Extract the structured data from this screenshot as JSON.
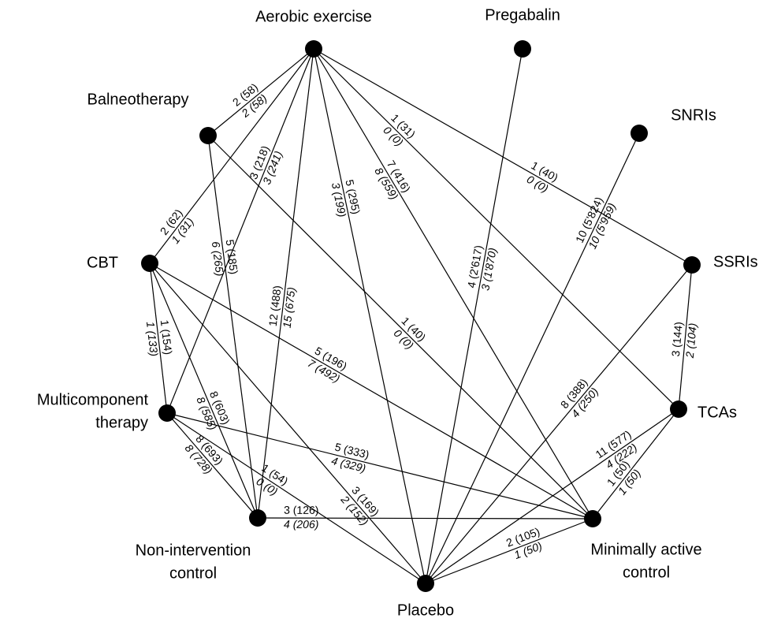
{
  "nodes": [
    {
      "label": [
        "Aerobic exercise"
      ]
    },
    {
      "label": [
        "Pregabalin"
      ]
    },
    {
      "label": [
        "Balneotherapy"
      ]
    },
    {
      "label": [
        "SNRIs"
      ]
    },
    {
      "label": [
        "CBT"
      ]
    },
    {
      "label": [
        "SSRIs"
      ]
    },
    {
      "label": [
        "Multicomponent",
        "therapy"
      ]
    },
    {
      "label": [
        "TCAs"
      ]
    },
    {
      "label": [
        "Non-intervention",
        "control"
      ]
    },
    {
      "label": [
        "Minimally active",
        "control"
      ]
    },
    {
      "label": [
        "Placebo"
      ]
    }
  ],
  "edges": [
    {
      "labels": [
        "2 (58)",
        "2 (58)"
      ]
    },
    {
      "labels": [
        "2 (62)",
        "1 (31)"
      ]
    },
    {
      "labels": [
        "3 (218)",
        "3 (241)"
      ]
    },
    {
      "labels": [
        "12 (488)",
        "15 (675)"
      ]
    },
    {
      "labels": [
        "5 (295)",
        "3 (199)"
      ]
    },
    {
      "labels": [
        "5 (185)",
        "6 (265)"
      ]
    },
    {
      "labels": [
        "1 (40)",
        "0 (0)"
      ]
    },
    {
      "labels": [
        "7 (416)",
        "8 (559)"
      ]
    },
    {
      "labels": [
        "1 (31)",
        "0 (0)"
      ]
    },
    {
      "labels": [
        "1 (40)",
        "0 (0)"
      ]
    },
    {
      "labels": [
        "4 (2'617)",
        "3 (1'870)"
      ]
    },
    {
      "labels": [
        "10 (5'824)",
        "10 (5'959)"
      ]
    },
    {
      "labels": [
        "3 (144)",
        "2 (104)"
      ]
    },
    {
      "labels": [
        "8 (388)",
        "4 (250)"
      ]
    },
    {
      "labels": [
        "1 (154)",
        "1 (133)"
      ]
    },
    {
      "labels": [
        "8 (603)",
        "8 (585)"
      ]
    },
    {
      "labels": [
        "5 (196)",
        "7 (492)"
      ]
    },
    {
      "labels": [
        "3 (169)",
        "2 (152)"
      ]
    },
    {
      "labels": [
        "8 (693)",
        "8 (728)"
      ]
    },
    {
      "labels": [
        "5 (333)",
        "4 (329)"
      ]
    },
    {
      "labels": [
        "1 (54)",
        "0 (0)"
      ]
    },
    {
      "labels": [
        "3 (126)",
        "4 (206)"
      ]
    },
    {
      "labels": [
        "2 (105)",
        "1 (50)"
      ]
    },
    {
      "labels": [
        "11 (577)",
        "4 (222)"
      ]
    },
    {
      "labels": [
        "1 (50)",
        "1 (50)"
      ]
    }
  ]
}
